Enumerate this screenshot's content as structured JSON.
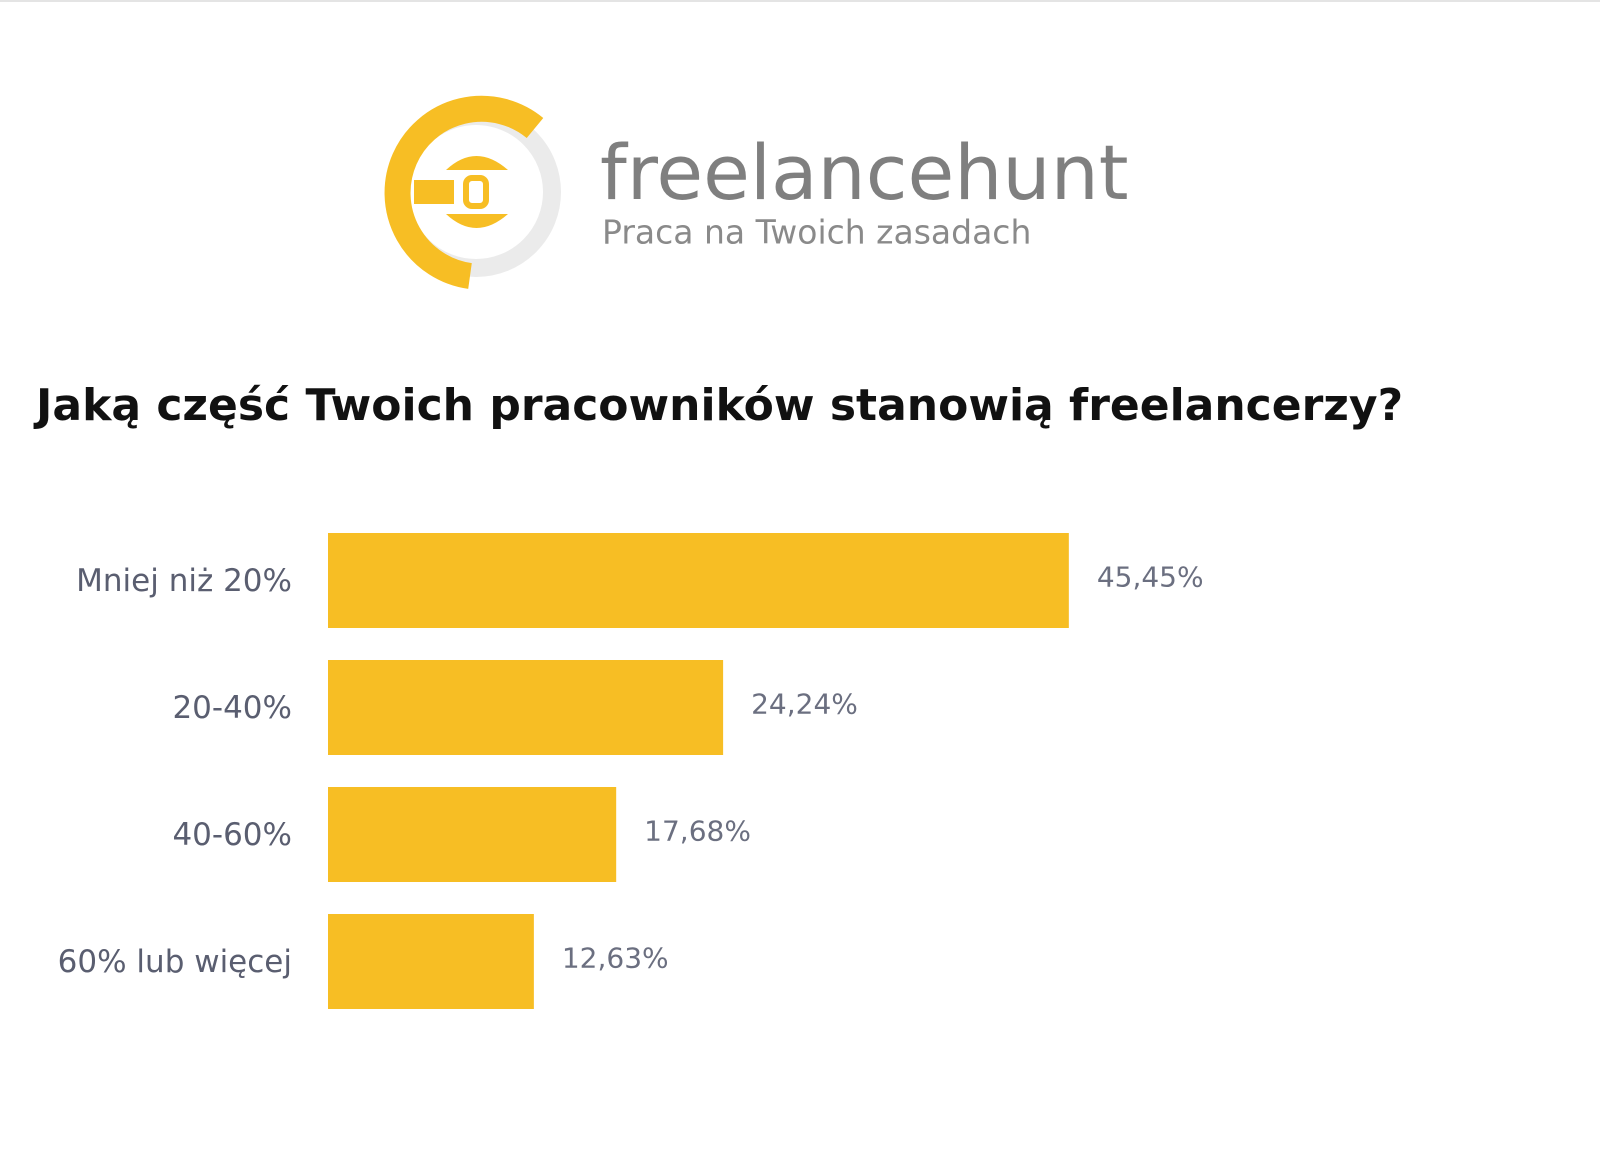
{
  "logo": {
    "name": "freelancehunt",
    "tagline": "Praca na Twoich zasadach"
  },
  "chart_data": {
    "type": "bar",
    "orientation": "horizontal",
    "title": "Jaką część Twoich pracowników stanowią freelancerzy?",
    "categories": [
      "Mniej niż 20%",
      "20-40%",
      "40-60%",
      "60% lub więcej"
    ],
    "values": [
      45.45,
      24.24,
      17.68,
      12.63
    ],
    "value_labels": [
      "45,45%",
      "24,24%",
      "17,68%",
      "12,63%"
    ],
    "color": "#f7be24"
  }
}
